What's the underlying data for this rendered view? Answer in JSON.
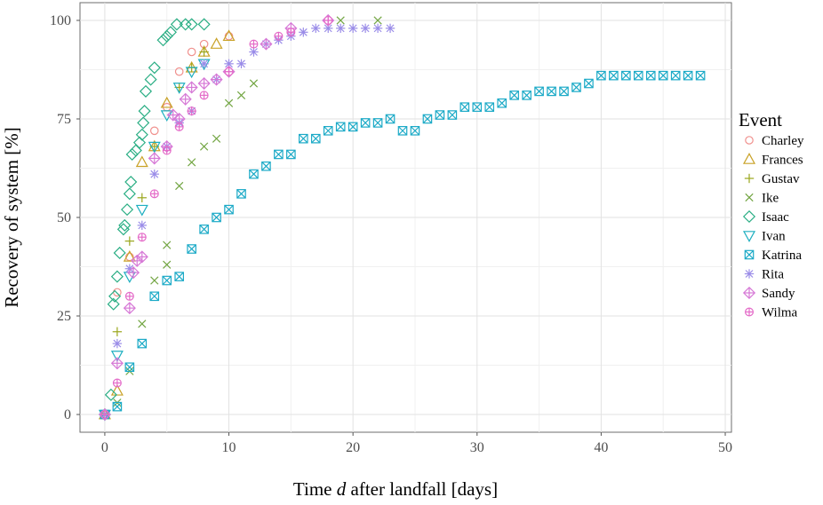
{
  "chart_data": {
    "type": "scatter",
    "title": "",
    "xlabel_prefix": "Time ",
    "xlabel_var": "d",
    "xlabel_suffix": " after landfall [days]",
    "ylabel": "Recovery of system [%]",
    "xlim": [
      -2,
      50.5
    ],
    "ylim": [
      -4.5,
      104.5
    ],
    "xticks": [
      0,
      10,
      20,
      30,
      40,
      50
    ],
    "yticks": [
      0,
      25,
      50,
      75,
      100
    ],
    "grid": true,
    "legend": {
      "title": "Event",
      "position": "right"
    },
    "series": [
      {
        "name": "Charley",
        "shape": "circle",
        "color": "#F0908D",
        "points": [
          [
            0,
            0
          ],
          [
            1,
            31
          ],
          [
            2,
            40
          ],
          [
            4,
            72
          ],
          [
            5,
            78
          ],
          [
            6,
            87
          ],
          [
            7,
            92
          ],
          [
            8,
            94
          ],
          [
            10,
            96
          ]
        ]
      },
      {
        "name": "Frances",
        "shape": "triangle",
        "color": "#C9A227",
        "points": [
          [
            0,
            0
          ],
          [
            1,
            6
          ],
          [
            2,
            40
          ],
          [
            3,
            64
          ],
          [
            4,
            68
          ],
          [
            5,
            79
          ],
          [
            7,
            88
          ],
          [
            8,
            92
          ],
          [
            9,
            94
          ],
          [
            10,
            96
          ]
        ]
      },
      {
        "name": "Gustav",
        "shape": "plus",
        "color": "#9AA61C",
        "points": [
          [
            0,
            0
          ],
          [
            1,
            21
          ],
          [
            2,
            44
          ],
          [
            3,
            55
          ],
          [
            4,
            68
          ],
          [
            6,
            83
          ],
          [
            7,
            88
          ],
          [
            8,
            92
          ]
        ]
      },
      {
        "name": "Ike",
        "shape": "cross",
        "color": "#72A542",
        "points": [
          [
            0,
            0
          ],
          [
            1,
            3
          ],
          [
            2,
            11
          ],
          [
            3,
            23
          ],
          [
            4,
            34
          ],
          [
            5,
            38
          ],
          [
            5,
            43
          ],
          [
            6,
            58
          ],
          [
            7,
            64
          ],
          [
            8,
            68
          ],
          [
            9,
            70
          ],
          [
            10,
            79
          ],
          [
            11,
            81
          ],
          [
            12,
            84
          ],
          [
            19,
            100
          ],
          [
            22,
            100
          ]
        ]
      },
      {
        "name": "Isaac",
        "shape": "diamond",
        "color": "#2AAE84",
        "points": [
          [
            0,
            0
          ],
          [
            0.5,
            5
          ],
          [
            0.7,
            28
          ],
          [
            0.8,
            30
          ],
          [
            1,
            35
          ],
          [
            1.2,
            41
          ],
          [
            1.5,
            47
          ],
          [
            1.6,
            48
          ],
          [
            1.8,
            52
          ],
          [
            2,
            56
          ],
          [
            2.1,
            59
          ],
          [
            2.2,
            66
          ],
          [
            2.5,
            67
          ],
          [
            2.8,
            69
          ],
          [
            3,
            71
          ],
          [
            3.1,
            74
          ],
          [
            3.2,
            77
          ],
          [
            3.3,
            82
          ],
          [
            3.7,
            85
          ],
          [
            4,
            88
          ],
          [
            4.7,
            95
          ],
          [
            5,
            96
          ],
          [
            5.3,
            97
          ],
          [
            5.8,
            99
          ],
          [
            6.5,
            99
          ],
          [
            7,
            99
          ],
          [
            8,
            99
          ]
        ]
      },
      {
        "name": "Ivan",
        "shape": "triangle-down",
        "color": "#1EAFC0",
        "points": [
          [
            0,
            0
          ],
          [
            1,
            15
          ],
          [
            2,
            35
          ],
          [
            3,
            52
          ],
          [
            4,
            68
          ],
          [
            5,
            76
          ],
          [
            6,
            83
          ],
          [
            7,
            87
          ],
          [
            8,
            89
          ]
        ]
      },
      {
        "name": "Katrina",
        "shape": "square-x",
        "color": "#1CAAC7",
        "points": [
          [
            0,
            0
          ],
          [
            1,
            2
          ],
          [
            2,
            12
          ],
          [
            3,
            18
          ],
          [
            4,
            30
          ],
          [
            5,
            34
          ],
          [
            6,
            35
          ],
          [
            7,
            42
          ],
          [
            8,
            47
          ],
          [
            9,
            50
          ],
          [
            10,
            52
          ],
          [
            11,
            56
          ],
          [
            12,
            61
          ],
          [
            13,
            63
          ],
          [
            14,
            66
          ],
          [
            15,
            66
          ],
          [
            16,
            70
          ],
          [
            17,
            70
          ],
          [
            18,
            72
          ],
          [
            19,
            73
          ],
          [
            20,
            73
          ],
          [
            21,
            74
          ],
          [
            22,
            74
          ],
          [
            23,
            75
          ],
          [
            24,
            72
          ],
          [
            25,
            72
          ],
          [
            26,
            75
          ],
          [
            27,
            76
          ],
          [
            28,
            76
          ],
          [
            29,
            78
          ],
          [
            30,
            78
          ],
          [
            31,
            78
          ],
          [
            32,
            79
          ],
          [
            33,
            81
          ],
          [
            34,
            81
          ],
          [
            35,
            82
          ],
          [
            36,
            82
          ],
          [
            37,
            82
          ],
          [
            38,
            83
          ],
          [
            39,
            84
          ],
          [
            40,
            86
          ],
          [
            41,
            86
          ],
          [
            42,
            86
          ],
          [
            43,
            86
          ],
          [
            44,
            86
          ],
          [
            45,
            86
          ],
          [
            46,
            86
          ],
          [
            47,
            86
          ],
          [
            48,
            86
          ]
        ]
      },
      {
        "name": "Rita",
        "shape": "star",
        "color": "#9A8CE8",
        "points": [
          [
            0,
            0
          ],
          [
            1,
            18
          ],
          [
            2,
            37
          ],
          [
            3,
            48
          ],
          [
            4,
            61
          ],
          [
            5,
            68
          ],
          [
            6,
            74
          ],
          [
            7,
            77
          ],
          [
            8,
            89
          ],
          [
            9,
            85
          ],
          [
            10,
            89
          ],
          [
            11,
            89
          ],
          [
            12,
            92
          ],
          [
            13,
            94
          ],
          [
            14,
            95
          ],
          [
            15,
            96
          ],
          [
            16,
            97
          ],
          [
            17,
            98
          ],
          [
            18,
            98
          ],
          [
            19,
            98
          ],
          [
            20,
            98
          ],
          [
            21,
            98
          ],
          [
            22,
            98
          ],
          [
            23,
            98
          ]
        ]
      },
      {
        "name": "Sandy",
        "shape": "diamond-plus",
        "color": "#D678D6",
        "points": [
          [
            0,
            0
          ],
          [
            1,
            13
          ],
          [
            2,
            27
          ],
          [
            2.3,
            36
          ],
          [
            2.6,
            39
          ],
          [
            3,
            40
          ],
          [
            4,
            65
          ],
          [
            5,
            68
          ],
          [
            5.5,
            76
          ],
          [
            6,
            75
          ],
          [
            6.5,
            80
          ],
          [
            7,
            83
          ],
          [
            8,
            84
          ],
          [
            9,
            85
          ],
          [
            10,
            87
          ],
          [
            13,
            94
          ],
          [
            15,
            98
          ],
          [
            18,
            100
          ]
        ]
      },
      {
        "name": "Wilma",
        "shape": "circle-plus",
        "color": "#E46BC8",
        "points": [
          [
            0,
            0
          ],
          [
            1,
            8
          ],
          [
            2,
            30
          ],
          [
            3,
            45
          ],
          [
            4,
            56
          ],
          [
            5,
            67
          ],
          [
            6,
            73
          ],
          [
            7,
            77
          ],
          [
            8,
            81
          ],
          [
            10,
            87
          ],
          [
            12,
            94
          ],
          [
            14,
            96
          ],
          [
            15,
            97
          ],
          [
            18,
            100
          ]
        ]
      }
    ]
  }
}
